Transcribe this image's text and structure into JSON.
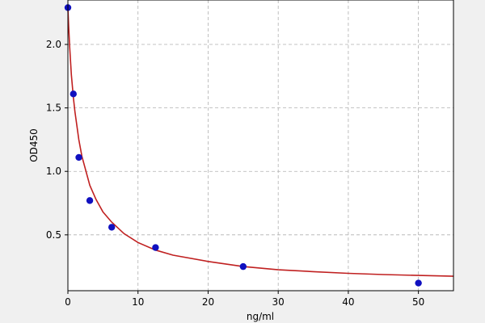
{
  "chart_data": {
    "type": "scatter",
    "title": "",
    "xlabel": "ng/ml",
    "ylabel": "OD450",
    "xlim": [
      0,
      55
    ],
    "ylim": [
      0.06,
      2.35
    ],
    "xticks": [
      0,
      10,
      20,
      30,
      40,
      50
    ],
    "xtick_labels": [
      "0",
      "10",
      "20",
      "30",
      "40",
      "50"
    ],
    "yticks": [
      0.5,
      1.0,
      1.5,
      2.0
    ],
    "ytick_labels": [
      "0.5",
      "1.0",
      "1.5",
      "2.0"
    ],
    "grid": true,
    "legend": false,
    "points": {
      "x": [
        0,
        0.78,
        1.56,
        3.12,
        6.25,
        12.5,
        25,
        50
      ],
      "y": [
        2.29,
        1.61,
        1.11,
        0.77,
        0.56,
        0.4,
        0.25,
        0.12
      ]
    },
    "fit_curve": {
      "x": [
        0,
        0.1,
        0.25,
        0.5,
        0.78,
        1.0,
        1.56,
        2,
        3.12,
        4,
        5,
        6.25,
        8,
        10,
        12.5,
        15,
        20,
        25,
        30,
        35,
        40,
        45,
        50,
        55
      ],
      "y": [
        2.29,
        2.15,
        1.98,
        1.76,
        1.58,
        1.47,
        1.25,
        1.12,
        0.89,
        0.78,
        0.68,
        0.6,
        0.51,
        0.44,
        0.38,
        0.34,
        0.29,
        0.25,
        0.225,
        0.21,
        0.197,
        0.187,
        0.18,
        0.174
      ]
    },
    "colors": {
      "points": "#1010c0",
      "curve": "#c02020",
      "grid": "#b0b0b0",
      "axes": "#000000",
      "plot_background": "#ffffff",
      "figure_background": "#f0f0f0"
    }
  }
}
